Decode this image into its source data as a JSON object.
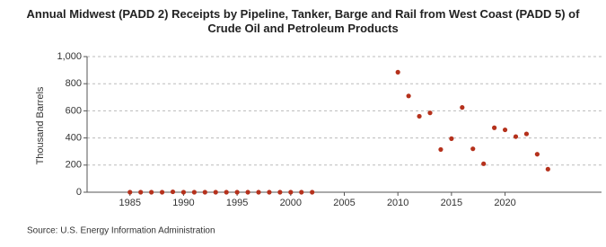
{
  "chart_data": {
    "type": "scatter",
    "title": "Annual Midwest (PADD 2) Receipts by Pipeline, Tanker, Barge and Rail from West Coast (PADD 5) of Crude Oil and Petroleum Products",
    "y_label": "Thousand Barrels",
    "source": "Source: U.S. Energy Information Administration",
    "x": [
      1985,
      1986,
      1987,
      1988,
      1989,
      1990,
      1991,
      1992,
      1993,
      1994,
      1995,
      1996,
      1997,
      1998,
      1999,
      2000,
      2001,
      2002,
      2010,
      2011,
      2012,
      2013,
      2014,
      2015,
      2016,
      2017,
      2018,
      2019,
      2020,
      2021,
      2022,
      2023,
      2024
    ],
    "series": [
      {
        "name": "Receipts",
        "color": "#b5311c",
        "values": [
          0,
          0,
          0,
          0,
          3,
          0,
          0,
          0,
          0,
          0,
          0,
          0,
          0,
          0,
          0,
          0,
          0,
          0,
          885,
          710,
          560,
          585,
          315,
          395,
          625,
          320,
          210,
          475,
          460,
          410,
          430,
          280,
          170
        ]
      }
    ],
    "xlim": [
      1981,
      2029
    ],
    "xticks": [
      1985,
      1990,
      1995,
      2000,
      2005,
      2010,
      2015,
      2020
    ],
    "ylim": [
      0,
      1000
    ],
    "yticks": [
      0,
      200,
      400,
      600,
      800,
      {
        "value": 1000,
        "label": "1,000"
      }
    ],
    "grid": true
  }
}
